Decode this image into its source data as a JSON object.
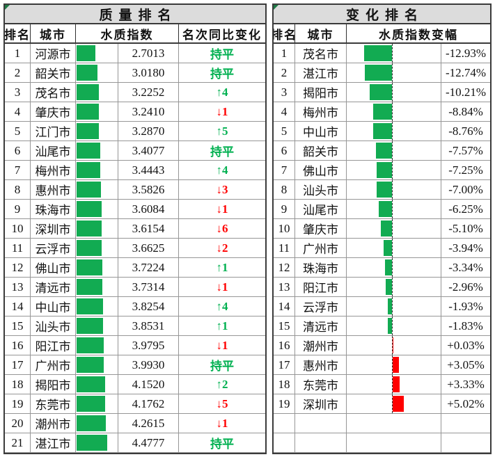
{
  "colors": {
    "bar_green": "#12ab52",
    "bar_red": "#ff0000",
    "text_green": "#00b050",
    "text_red": "#ff0000",
    "title_bg": "#dcdcdc",
    "grid_line": "#969696",
    "frame_line": "#3b3b3b"
  },
  "tables": {
    "left": {
      "title": "质量排名",
      "headers": {
        "rank": "排名",
        "city": "城市",
        "index": "水质指数",
        "change": "名次同比变化"
      }
    },
    "right": {
      "title": "变化排名",
      "headers": {
        "rank": "排名",
        "city": "城市",
        "delta": "水质指数变幅"
      }
    }
  },
  "chart_data": [
    {
      "type": "bar",
      "title": "质量排名",
      "orientation": "horizontal",
      "xlabel": "水质指数",
      "xlim": [
        0,
        4.4777
      ],
      "rank": [
        1,
        2,
        3,
        4,
        5,
        6,
        7,
        8,
        9,
        10,
        11,
        12,
        13,
        14,
        15,
        16,
        17,
        18,
        19,
        20,
        21
      ],
      "categories": [
        "河源市",
        "韶关市",
        "茂名市",
        "肇庆市",
        "江门市",
        "汕尾市",
        "梅州市",
        "惠州市",
        "珠海市",
        "深圳市",
        "云浮市",
        "佛山市",
        "清远市",
        "中山市",
        "汕头市",
        "阳江市",
        "广州市",
        "揭阳市",
        "东莞市",
        "潮州市",
        "湛江市"
      ],
      "values": [
        2.7013,
        3.018,
        3.2252,
        3.241,
        3.287,
        3.4077,
        3.4443,
        3.5826,
        3.6084,
        3.6154,
        3.6625,
        3.7224,
        3.7314,
        3.8254,
        3.8531,
        3.9795,
        3.993,
        4.152,
        4.1762,
        4.2615,
        4.4777
      ],
      "value_labels": [
        "2.7013",
        "3.0180",
        "3.2252",
        "3.2410",
        "3.2870",
        "3.4077",
        "3.4443",
        "3.5826",
        "3.6084",
        "3.6154",
        "3.6625",
        "3.7224",
        "3.7314",
        "3.8254",
        "3.8531",
        "3.9795",
        "3.9930",
        "4.1520",
        "4.1762",
        "4.2615",
        "4.4777"
      ],
      "rank_change": [
        "持平",
        "持平",
        "↑4",
        "↓1",
        "↑5",
        "持平",
        "↑4",
        "↓3",
        "↓1",
        "↓6",
        "↓2",
        "↑1",
        "↓1",
        "↑4",
        "↑1",
        "↓1",
        "持平",
        "↑2",
        "↓5",
        "↓1",
        "持平"
      ]
    },
    {
      "type": "bar",
      "title": "变化排名",
      "orientation": "horizontal",
      "xlabel": "水质指数变幅",
      "xlim": [
        -12.93,
        5.02
      ],
      "axis_at_zero": true,
      "rank": [
        1,
        2,
        3,
        4,
        5,
        6,
        7,
        8,
        9,
        10,
        11,
        12,
        13,
        14,
        15,
        16,
        17,
        18,
        19
      ],
      "categories": [
        "茂名市",
        "湛江市",
        "揭阳市",
        "梅州市",
        "中山市",
        "韶关市",
        "佛山市",
        "汕头市",
        "汕尾市",
        "肇庆市",
        "广州市",
        "珠海市",
        "阳江市",
        "云浮市",
        "清远市",
        "潮州市",
        "惠州市",
        "东莞市",
        "深圳市"
      ],
      "values": [
        -12.93,
        -12.74,
        -10.21,
        -8.84,
        -8.76,
        -7.57,
        -7.25,
        -7.0,
        -6.25,
        -5.1,
        -3.94,
        -3.34,
        -2.96,
        -1.93,
        -1.83,
        0.03,
        3.05,
        3.33,
        5.02
      ],
      "value_labels": [
        "-12.93%",
        "-12.74%",
        "-10.21%",
        "-8.84%",
        "-8.76%",
        "-7.57%",
        "-7.25%",
        "-7.00%",
        "-6.25%",
        "-5.10%",
        "-3.94%",
        "-3.34%",
        "-2.96%",
        "-1.93%",
        "-1.83%",
        "+0.03%",
        "+3.05%",
        "+3.33%",
        "+5.02%"
      ],
      "empty_trailing_rows": 2
    }
  ]
}
